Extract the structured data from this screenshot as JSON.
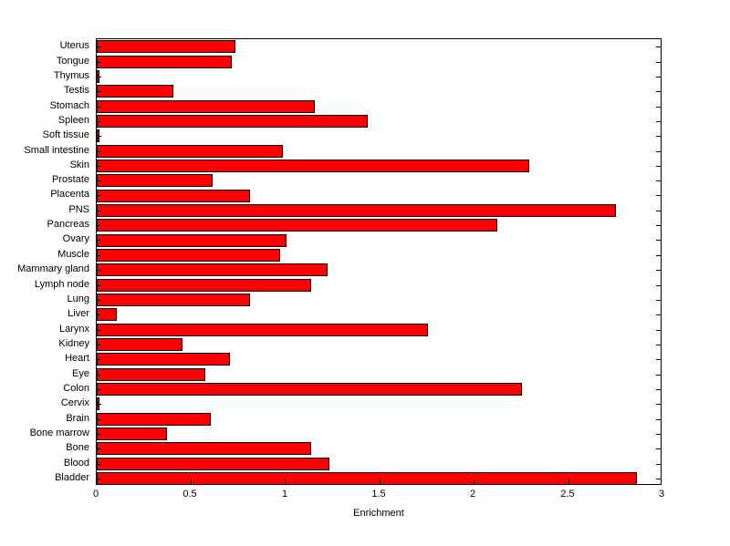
{
  "figure": {
    "background_color": "#ffffff"
  },
  "chart_data": {
    "type": "bar",
    "orientation": "horizontal",
    "title": "",
    "xlabel": "Enrichment",
    "ylabel": "",
    "xlim": [
      0,
      3
    ],
    "xticks": [
      0,
      0.5,
      1,
      1.5,
      2,
      2.5,
      3
    ],
    "xtick_labels": [
      "0",
      "0.5",
      "1",
      "1.5",
      "2",
      "2.5",
      "3"
    ],
    "category_order": "top-to-bottom",
    "categories": [
      "Uterus",
      "Tongue",
      "Thymus",
      "Testis",
      "Stomach",
      "Spleen",
      "Soft tissue",
      "Small intestine",
      "Skin",
      "Prostate",
      "Placenta",
      "PNS",
      "Pancreas",
      "Ovary",
      "Muscle",
      "Mammary gland",
      "Lymph node",
      "Lung",
      "Liver",
      "Larynx",
      "Kidney",
      "Heart",
      "Eye",
      "Colon",
      "Cervix",
      "Brain",
      "Bone marrow",
      "Bone",
      "Blood",
      "Bladder"
    ],
    "values": [
      0.73,
      0.71,
      0.01,
      0.4,
      1.15,
      1.43,
      0.01,
      0.98,
      2.29,
      0.61,
      0.81,
      2.75,
      2.12,
      1.0,
      0.97,
      1.22,
      1.13,
      0.81,
      0.1,
      1.75,
      0.45,
      0.7,
      0.57,
      2.25,
      0.01,
      0.6,
      0.37,
      1.13,
      1.23,
      2.86
    ],
    "bar_color": "#ff0000",
    "bar_edge_color": "#000000",
    "grid": false,
    "legend": null
  }
}
